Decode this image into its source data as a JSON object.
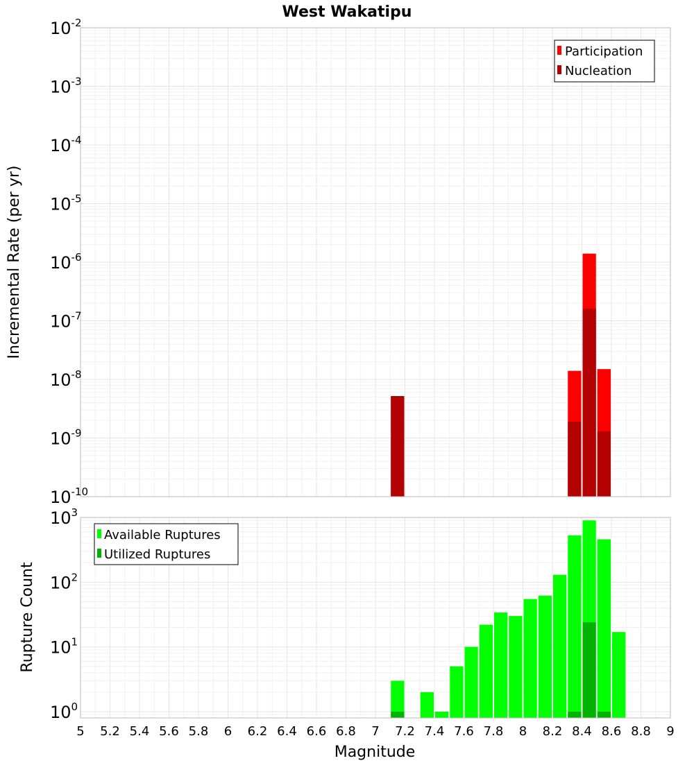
{
  "chart_data": [
    {
      "type": "bar",
      "title": "West Wakatipu",
      "ylabel": "Incremental Rate (per yr)",
      "yscale": "log",
      "ylim": [
        1e-10,
        0.01
      ],
      "xlim": [
        5,
        9
      ],
      "bin_width": 0.1,
      "yticks": [
        {
          "base": "10",
          "exp": "-10"
        },
        {
          "base": "10",
          "exp": "-9"
        },
        {
          "base": "10",
          "exp": "-8"
        },
        {
          "base": "10",
          "exp": "-7"
        },
        {
          "base": "10",
          "exp": "-6"
        },
        {
          "base": "10",
          "exp": "-5"
        },
        {
          "base": "10",
          "exp": "-4"
        },
        {
          "base": "10",
          "exp": "-3"
        },
        {
          "base": "10",
          "exp": "-2"
        }
      ],
      "legend_position": "top-right",
      "series": [
        {
          "name": "Participation",
          "color": "#ff0000",
          "x": [
            7.15,
            8.35,
            8.45,
            8.55
          ],
          "values": [
            5.2e-09,
            1.4e-08,
            1.4e-06,
            1.5e-08
          ]
        },
        {
          "name": "Nucleation",
          "color": "#b30000",
          "x": [
            7.15,
            8.35,
            8.45,
            8.55
          ],
          "values": [
            5.2e-09,
            1.9e-09,
            1.6e-07,
            1.3e-09
          ]
        }
      ]
    },
    {
      "type": "bar",
      "ylabel": "Rupture Count",
      "xlabel": "Magnitude",
      "yscale": "log",
      "ylim": [
        0.8,
        1000
      ],
      "xlim": [
        5,
        9
      ],
      "bin_width": 0.1,
      "yticks": [
        {
          "base": "10",
          "exp": "0"
        },
        {
          "base": "10",
          "exp": "1"
        },
        {
          "base": "10",
          "exp": "2"
        },
        {
          "base": "10",
          "exp": "3"
        }
      ],
      "xticks": [
        "5",
        "5.2",
        "5.4",
        "5.6",
        "5.8",
        "6",
        "6.2",
        "6.4",
        "6.6",
        "6.8",
        "7",
        "7.2",
        "7.4",
        "7.6",
        "7.8",
        "8",
        "8.2",
        "8.4",
        "8.6",
        "8.8",
        "9"
      ],
      "legend_position": "top-left",
      "series": [
        {
          "name": "Available Ruptures",
          "color": "#00ff00",
          "x": [
            7.15,
            7.35,
            7.45,
            7.55,
            7.65,
            7.75,
            7.85,
            7.95,
            8.05,
            8.15,
            8.25,
            8.35,
            8.45,
            8.55,
            8.65
          ],
          "values": [
            3,
            2,
            1,
            5,
            10,
            22,
            34,
            30,
            55,
            62,
            130,
            530,
            900,
            460,
            17
          ]
        },
        {
          "name": "Utilized Ruptures",
          "color": "#00b300",
          "x": [
            7.15,
            8.35,
            8.45,
            8.55
          ],
          "values": [
            1,
            1,
            24,
            1
          ]
        }
      ]
    }
  ]
}
